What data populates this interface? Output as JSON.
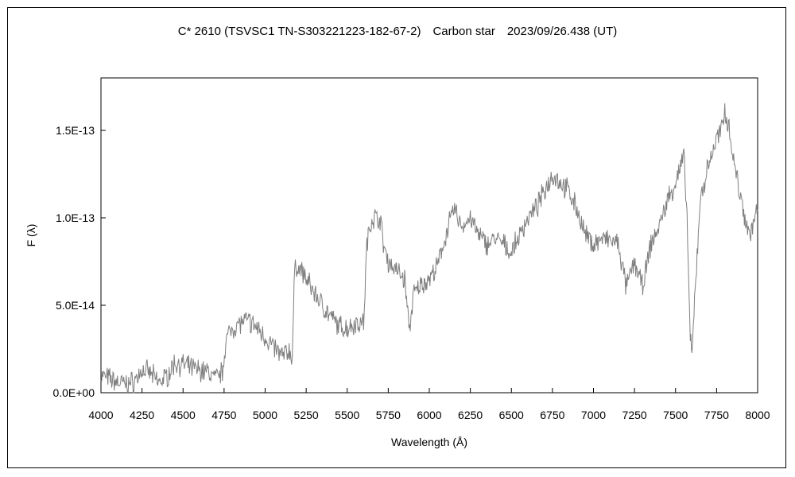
{
  "chart_data": {
    "type": "line",
    "title": "C* 2610 (TSVSC1 TN-S303221223-182-67-2)　Carbon star　2023/09/26.438 (UT)",
    "xlabel": "Wavelength (Å)",
    "ylabel": "F (λ)",
    "xlim": [
      4000,
      8000
    ],
    "ylim": [
      0,
      1.8e-13
    ],
    "grid": false,
    "legend": "none",
    "line_color": "#7f7f7f",
    "x_ticks": [
      4000,
      4250,
      4500,
      4750,
      5000,
      5250,
      5500,
      5750,
      6000,
      6250,
      6500,
      6750,
      7000,
      7250,
      7500,
      7750,
      8000
    ],
    "x_tick_labels": [
      "4000",
      "4250",
      "4500",
      "4750",
      "5000",
      "5250",
      "5500",
      "5750",
      "6000",
      "6250",
      "6500",
      "6750",
      "7000",
      "7250",
      "7500",
      "7750",
      "8000"
    ],
    "y_ticks": [
      0,
      5e-14,
      1e-13,
      1.5e-13
    ],
    "y_tick_labels": [
      "0.0E+00",
      "5.0E-14",
      "1.0E-13",
      "1.5E-13"
    ],
    "series": [
      {
        "name": "",
        "x": [
          4000,
          4050,
          4100,
          4150,
          4200,
          4250,
          4300,
          4350,
          4400,
          4450,
          4500,
          4550,
          4600,
          4650,
          4700,
          4740,
          4760,
          4800,
          4850,
          4900,
          4950,
          5000,
          5050,
          5100,
          5150,
          5165,
          5180,
          5200,
          5250,
          5300,
          5350,
          5400,
          5450,
          5500,
          5550,
          5600,
          5620,
          5650,
          5700,
          5720,
          5750,
          5800,
          5850,
          5880,
          5900,
          5950,
          6000,
          6050,
          6100,
          6150,
          6200,
          6250,
          6300,
          6350,
          6400,
          6450,
          6500,
          6550,
          6600,
          6650,
          6700,
          6750,
          6800,
          6850,
          6900,
          6950,
          7000,
          7050,
          7100,
          7150,
          7200,
          7250,
          7300,
          7350,
          7400,
          7450,
          7500,
          7550,
          7570,
          7590,
          7600,
          7620,
          7650,
          7700,
          7750,
          7780,
          7800,
          7830,
          7850,
          7900,
          7950,
          8000
        ],
        "y": [
          1e-14,
          8e-15,
          6e-15,
          5e-15,
          6e-15,
          1.3e-14,
          1.1e-14,
          6e-15,
          9e-15,
          1.7e-14,
          1.6e-14,
          1.4e-14,
          1.3e-14,
          1.2e-14,
          8e-15,
          1.2e-14,
          3e-14,
          3.7e-14,
          4e-14,
          4.1e-14,
          3.7e-14,
          3.2e-14,
          2.6e-14,
          2.1e-14,
          2.4e-14,
          2e-14,
          7e-14,
          7.3e-14,
          6.5e-14,
          5.7e-14,
          5e-14,
          4.3e-14,
          3.8e-14,
          3.7e-14,
          4e-14,
          4e-14,
          8.5e-14,
          1e-13,
          1e-13,
          8.5e-14,
          7.5e-14,
          7e-14,
          6.5e-14,
          3.5e-14,
          5.5e-14,
          6.2e-14,
          6.5e-14,
          7.2e-14,
          9e-14,
          1.05e-13,
          9.5e-14,
          1e-13,
          9e-14,
          8.5e-14,
          8.8e-14,
          8.5e-14,
          8e-14,
          9e-14,
          1e-13,
          1.05e-13,
          1.15e-13,
          1.25e-13,
          1.2e-13,
          1.15e-13,
          1.05e-13,
          9e-14,
          8.5e-14,
          8.8e-14,
          8.7e-14,
          8.5e-14,
          6e-14,
          7.5e-14,
          6e-14,
          8.5e-14,
          9.5e-14,
          1.1e-13,
          1.2e-13,
          1.35e-13,
          1e-13,
          3e-14,
          2e-14,
          6e-14,
          1.1e-13,
          1.3e-13,
          1.45e-13,
          1.5e-13,
          1.62e-13,
          1.5e-13,
          1.35e-13,
          1.1e-13,
          9e-14,
          1.05e-13
        ]
      }
    ]
  }
}
